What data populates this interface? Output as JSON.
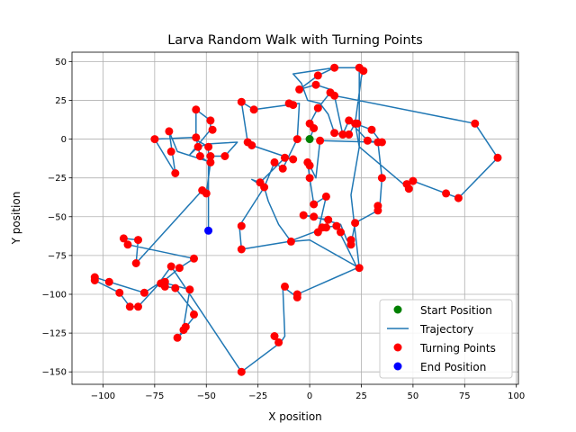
{
  "chart_data": {
    "type": "scatter",
    "title": "Larva Random Walk with Turning Points",
    "xlabel": "X position",
    "ylabel": "Y position",
    "xlim": [
      -115,
      101
    ],
    "ylim": [
      -158,
      56
    ],
    "xticks": [
      -100,
      -75,
      -50,
      -25,
      0,
      25,
      50,
      75,
      100
    ],
    "xtick_labels": [
      "−100",
      "−75",
      "−50",
      "−25",
      "0",
      "25",
      "50",
      "75",
      "100"
    ],
    "yticks": [
      -150,
      -125,
      -100,
      -75,
      -50,
      -25,
      0,
      25,
      50
    ],
    "ytick_labels": [
      "−150",
      "−125",
      "−100",
      "−75",
      "−50",
      "−25",
      "0",
      "25",
      "50"
    ],
    "grid": true,
    "legend_position": "lower right",
    "legend": [
      {
        "label": "Start Position",
        "kind": "marker",
        "color": "#008000"
      },
      {
        "label": "Trajectory",
        "kind": "line",
        "color": "#1f77b4"
      },
      {
        "label": "Turning Points",
        "kind": "marker",
        "color": "#ff0000"
      },
      {
        "label": "End Position",
        "kind": "marker",
        "color": "#0000ff"
      }
    ],
    "colors": {
      "trajectory": "#1f77b4",
      "turning_points": "#ff0000",
      "start": "#008000",
      "end": "#0000ff"
    },
    "start": [
      0,
      0
    ],
    "end": [
      -49,
      -59
    ],
    "trajectory": [
      [
        0,
        0
      ],
      [
        2,
        7
      ],
      [
        0,
        10
      ],
      [
        4,
        20
      ],
      [
        10,
        30
      ],
      [
        12,
        28
      ],
      [
        10,
        32
      ],
      [
        3,
        35
      ],
      [
        -5,
        32
      ],
      [
        4,
        41
      ],
      [
        12,
        46
      ],
      [
        24,
        46
      ],
      [
        26,
        44
      ],
      [
        25,
        40
      ],
      [
        22,
        10
      ],
      [
        24,
        -5
      ],
      [
        20,
        -36
      ],
      [
        24,
        -83
      ],
      [
        0,
        -65
      ],
      [
        -9,
        -66
      ],
      [
        -15,
        -55
      ],
      [
        -20,
        -40
      ],
      [
        -22,
        -31
      ],
      [
        -17,
        -15
      ],
      [
        -13,
        -19
      ],
      [
        -6,
        0
      ],
      [
        -5,
        23
      ],
      [
        -27,
        19
      ],
      [
        -33,
        24
      ],
      [
        -30,
        -2
      ],
      [
        -28,
        -4
      ],
      [
        -8,
        -13
      ],
      [
        -12,
        -12
      ],
      [
        -24,
        -28
      ],
      [
        -28,
        -26
      ],
      [
        -22,
        -31
      ],
      [
        -34,
        -56
      ],
      [
        -33,
        -71
      ],
      [
        -10,
        -66
      ],
      [
        8,
        -57
      ],
      [
        9,
        -52
      ],
      [
        -3,
        -49
      ],
      [
        2,
        -50
      ],
      [
        15,
        -55
      ],
      [
        18,
        -65
      ],
      [
        20,
        -68
      ],
      [
        22,
        -54
      ],
      [
        33,
        -46
      ],
      [
        34,
        -43
      ],
      [
        35,
        -25
      ],
      [
        33,
        -2
      ],
      [
        34,
        -1
      ],
      [
        30,
        6
      ],
      [
        22,
        10
      ],
      [
        19,
        3
      ],
      [
        16,
        3
      ],
      [
        12,
        4
      ],
      [
        9,
        16
      ],
      [
        5,
        23
      ],
      [
        -1,
        25
      ],
      [
        -4,
        36
      ],
      [
        -8,
        42
      ],
      [
        12,
        46
      ],
      [
        24,
        46
      ],
      [
        24,
        -5
      ],
      [
        48,
        -32
      ],
      [
        47,
        -29
      ],
      [
        50,
        -27
      ],
      [
        66,
        -35
      ],
      [
        72,
        -38
      ],
      [
        91,
        -12
      ],
      [
        80,
        10
      ],
      [
        12,
        28
      ],
      [
        16,
        3
      ],
      [
        19,
        12
      ],
      [
        28,
        -1
      ],
      [
        33,
        -2
      ],
      [
        5,
        -1
      ],
      [
        3,
        -25
      ],
      [
        0,
        -17
      ],
      [
        -1,
        -15
      ],
      [
        0,
        -25
      ],
      [
        2,
        -42
      ],
      [
        8,
        -37
      ],
      [
        4,
        -60
      ],
      [
        6,
        -57
      ],
      [
        13,
        -56
      ],
      [
        23,
        -83
      ],
      [
        -6,
        -100
      ],
      [
        -6,
        -102
      ],
      [
        -13,
        -95
      ],
      [
        -12,
        -127
      ],
      [
        -14,
        -131
      ],
      [
        -33,
        -150
      ],
      [
        -60,
        -96
      ],
      [
        -66,
        -84
      ],
      [
        -67,
        -82
      ],
      [
        -73,
        -93
      ],
      [
        -80,
        -99
      ],
      [
        -97,
        -92
      ],
      [
        -104,
        -89
      ],
      [
        -104,
        -91
      ],
      [
        -92,
        -99
      ],
      [
        -87,
        -108
      ],
      [
        -83,
        -108
      ],
      [
        -72,
        -92
      ],
      [
        -58,
        -97
      ],
      [
        -60,
        -113
      ],
      [
        -61,
        -121
      ],
      [
        -60,
        -123
      ],
      [
        -64,
        -128
      ],
      [
        -55,
        -113
      ],
      [
        -65,
        -96
      ],
      [
        -70,
        -95
      ],
      [
        -72,
        -93
      ],
      [
        -63,
        -83
      ],
      [
        -56,
        -77
      ],
      [
        -88,
        -68
      ],
      [
        -90,
        -64
      ],
      [
        -83,
        -65
      ],
      [
        -84,
        -80
      ],
      [
        -52,
        -33
      ],
      [
        -50,
        -35
      ],
      [
        -48,
        -15
      ],
      [
        -48,
        -11
      ],
      [
        -41,
        -11
      ],
      [
        -35,
        -2
      ],
      [
        -48,
        -3
      ],
      [
        -54,
        -5
      ],
      [
        -58,
        -10
      ],
      [
        -48,
        6
      ],
      [
        -48,
        12
      ],
      [
        -55,
        19
      ],
      [
        -55,
        1
      ],
      [
        -53,
        -11
      ],
      [
        -50,
        -14
      ],
      [
        -64,
        -8
      ],
      [
        -68,
        5
      ],
      [
        -65,
        -22
      ],
      [
        -75,
        0
      ],
      [
        -57,
        1
      ],
      [
        -49,
        -5
      ],
      [
        -49,
        -59
      ]
    ],
    "turning_points": [
      [
        0,
        10
      ],
      [
        2,
        7
      ],
      [
        4,
        20
      ],
      [
        10,
        30
      ],
      [
        12,
        28
      ],
      [
        3,
        35
      ],
      [
        -5,
        32
      ],
      [
        4,
        41
      ],
      [
        12,
        46
      ],
      [
        24,
        46
      ],
      [
        26,
        44
      ],
      [
        22,
        10
      ],
      [
        19,
        12
      ],
      [
        16,
        3
      ],
      [
        12,
        4
      ],
      [
        19,
        3
      ],
      [
        28,
        -1
      ],
      [
        30,
        6
      ],
      [
        33,
        -2
      ],
      [
        35,
        -2
      ],
      [
        35,
        -25
      ],
      [
        33,
        -43
      ],
      [
        33,
        -46
      ],
      [
        22,
        -54
      ],
      [
        20,
        -65
      ],
      [
        20,
        -68
      ],
      [
        24,
        -83
      ],
      [
        13,
        -56
      ],
      [
        15,
        -60
      ],
      [
        8,
        -57
      ],
      [
        4,
        -60
      ],
      [
        6,
        -57
      ],
      [
        9,
        -52
      ],
      [
        2,
        -50
      ],
      [
        -3,
        -49
      ],
      [
        -9,
        -66
      ],
      [
        2,
        -42
      ],
      [
        8,
        -37
      ],
      [
        0,
        -25
      ],
      [
        -1,
        -15
      ],
      [
        0,
        -17
      ],
      [
        5,
        -1
      ],
      [
        -8,
        -13
      ],
      [
        -12,
        -12
      ],
      [
        -13,
        -19
      ],
      [
        -6,
        0
      ],
      [
        -8,
        22
      ],
      [
        -10,
        23
      ],
      [
        -27,
        19
      ],
      [
        -33,
        24
      ],
      [
        -30,
        -2
      ],
      [
        -28,
        -4
      ],
      [
        -22,
        -31
      ],
      [
        -24,
        -28
      ],
      [
        -17,
        -15
      ],
      [
        -33,
        -56
      ],
      [
        -33,
        -71
      ],
      [
        -48,
        -15
      ],
      [
        -48,
        -11
      ],
      [
        -41,
        -11
      ],
      [
        -49,
        -5
      ],
      [
        -54,
        -5
      ],
      [
        -53,
        -11
      ],
      [
        -55,
        1
      ],
      [
        -55,
        19
      ],
      [
        -48,
        12
      ],
      [
        -47,
        6
      ],
      [
        -52,
        -33
      ],
      [
        -50,
        -35
      ],
      [
        -68,
        5
      ],
      [
        -67,
        -8
      ],
      [
        -75,
        0
      ],
      [
        -65,
        -22
      ],
      [
        -56,
        -77
      ],
      [
        -63,
        -83
      ],
      [
        -67,
        -82
      ],
      [
        -70,
        -92
      ],
      [
        -72,
        -93
      ],
      [
        -70,
        -95
      ],
      [
        -65,
        -96
      ],
      [
        -58,
        -97
      ],
      [
        -56,
        -113
      ],
      [
        -60,
        -121
      ],
      [
        -61,
        -123
      ],
      [
        -64,
        -128
      ],
      [
        -83,
        -65
      ],
      [
        -90,
        -64
      ],
      [
        -88,
        -68
      ],
      [
        -84,
        -80
      ],
      [
        -80,
        -99
      ],
      [
        -92,
        -99
      ],
      [
        -97,
        -92
      ],
      [
        -104,
        -89
      ],
      [
        -104,
        -91
      ],
      [
        -87,
        -108
      ],
      [
        -83,
        -108
      ],
      [
        -12,
        -95
      ],
      [
        -6,
        -100
      ],
      [
        -6,
        -102
      ],
      [
        -17,
        -127
      ],
      [
        -15,
        -131
      ],
      [
        -33,
        -150
      ],
      [
        23,
        10
      ],
      [
        47,
        -29
      ],
      [
        48,
        -32
      ],
      [
        50,
        -27
      ],
      [
        66,
        -35
      ],
      [
        72,
        -38
      ],
      [
        91,
        -12
      ],
      [
        80,
        10
      ]
    ]
  }
}
